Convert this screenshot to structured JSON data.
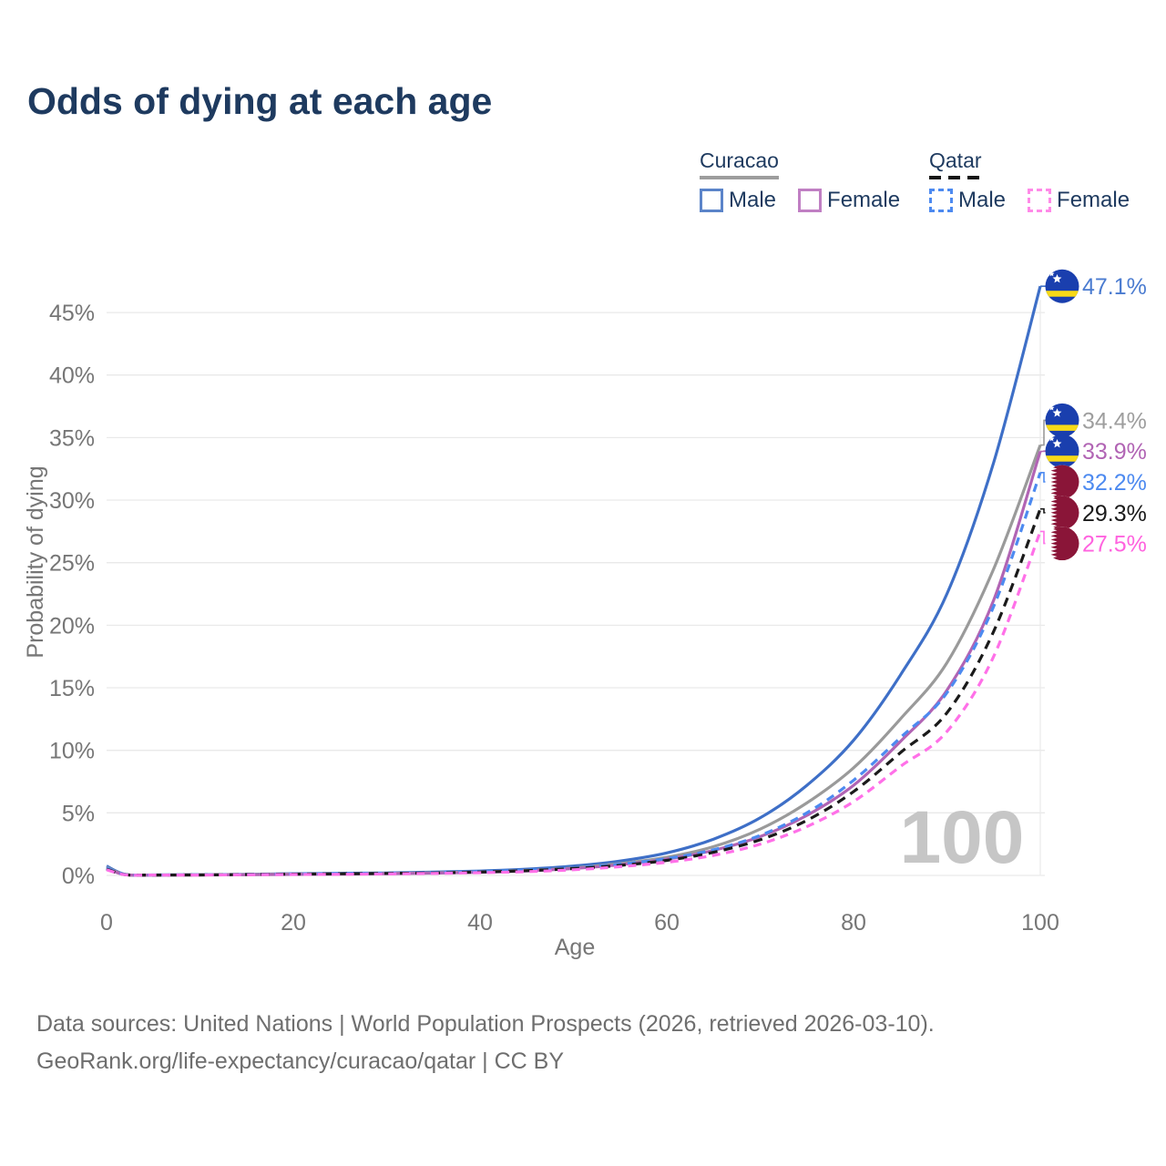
{
  "header": {
    "title": "Odds of dying at each age"
  },
  "legend": {
    "groups": [
      {
        "name": "Curacao",
        "line_style": "solid",
        "underline_color": "#9d9d9d",
        "items": [
          {
            "label": "Male",
            "color": "#5b84c9",
            "dashed": false
          },
          {
            "label": "Female",
            "color": "#c07fc3",
            "dashed": false
          }
        ]
      },
      {
        "name": "Qatar",
        "line_style": "dashed",
        "underline_color": "#161616",
        "items": [
          {
            "label": "Male",
            "color": "#4d8af0",
            "dashed": true
          },
          {
            "label": "Female",
            "color": "#ff8ae8",
            "dashed": true
          }
        ]
      }
    ]
  },
  "chart_data": {
    "type": "line",
    "title": "Odds of dying at each age",
    "xlabel": "Age",
    "ylabel": "Probability of dying",
    "xlim": [
      0,
      100
    ],
    "ylim": [
      0,
      47.5
    ],
    "grid": "horizontal",
    "legend_position": "top-right",
    "frame_label": "100",
    "xticks": [
      0,
      20,
      40,
      60,
      80,
      100
    ],
    "xtick_labels": [
      "0",
      "20",
      "40",
      "60",
      "80",
      "100"
    ],
    "yticks": [
      0,
      5,
      10,
      15,
      20,
      25,
      30,
      35,
      40,
      45
    ],
    "ytick_labels": [
      "0%",
      "5%",
      "10%",
      "15%",
      "20%",
      "25%",
      "30%",
      "35%",
      "40%",
      "45%"
    ],
    "x": [
      0,
      2,
      5,
      10,
      15,
      20,
      25,
      30,
      35,
      40,
      45,
      50,
      55,
      60,
      65,
      70,
      75,
      80,
      85,
      90,
      95,
      100
    ],
    "series": [
      {
        "id": "curacao-male",
        "name": "Curacao Male",
        "country": "Curacao",
        "flag": "cw",
        "color": "#3e6fc7",
        "dash": null,
        "end_label": "47.1%",
        "end_label_color": "#4a7bd0",
        "values": [
          0.75,
          0.08,
          0.04,
          0.05,
          0.09,
          0.14,
          0.17,
          0.2,
          0.26,
          0.35,
          0.5,
          0.75,
          1.15,
          1.8,
          2.9,
          4.6,
          7.2,
          10.8,
          16.0,
          22.5,
          33.0,
          47.1
        ]
      },
      {
        "id": "curacao-total",
        "name": "Curacao",
        "country": "Curacao",
        "flag": "cw",
        "color": "#9a9a9a",
        "dash": null,
        "end_label": "34.4%",
        "end_label_color": "#9e9e9e",
        "values": [
          0.65,
          0.07,
          0.03,
          0.04,
          0.07,
          0.11,
          0.13,
          0.16,
          0.21,
          0.28,
          0.4,
          0.6,
          0.95,
          1.45,
          2.3,
          3.7,
          5.8,
          8.6,
          12.5,
          17.0,
          24.5,
          34.4
        ]
      },
      {
        "id": "curacao-female",
        "name": "Curacao Female",
        "country": "Curacao",
        "flag": "cw",
        "color": "#b164b4",
        "dash": null,
        "end_label": "33.9%",
        "end_label_color": "#b164b4",
        "values": [
          0.55,
          0.06,
          0.03,
          0.04,
          0.05,
          0.08,
          0.1,
          0.13,
          0.18,
          0.25,
          0.36,
          0.55,
          0.85,
          1.3,
          2.0,
          3.1,
          4.8,
          7.2,
          10.7,
          14.8,
          22.0,
          33.9
        ]
      },
      {
        "id": "qatar-male",
        "name": "Qatar Male",
        "country": "Qatar",
        "flag": "qa",
        "color": "#4d8af0",
        "dash": "9 6.5",
        "end_label": "32.2%",
        "end_label_color": "#4d8af0",
        "values": [
          0.6,
          0.07,
          0.03,
          0.05,
          0.08,
          0.12,
          0.15,
          0.18,
          0.23,
          0.3,
          0.42,
          0.6,
          0.9,
          1.35,
          2.05,
          3.2,
          5.0,
          7.6,
          11.0,
          14.6,
          21.5,
          32.2
        ]
      },
      {
        "id": "qatar-total",
        "name": "Qatar",
        "country": "Qatar",
        "flag": "qa",
        "color": "#1a1a1a",
        "dash": "10 7",
        "end_label": "29.3%",
        "end_label_color": "#1a1a1a",
        "values": [
          0.5,
          0.06,
          0.03,
          0.04,
          0.07,
          0.1,
          0.13,
          0.16,
          0.2,
          0.27,
          0.38,
          0.55,
          0.8,
          1.2,
          1.85,
          2.85,
          4.4,
          6.7,
          9.8,
          13.0,
          19.5,
          29.3
        ]
      },
      {
        "id": "qatar-female",
        "name": "Qatar Female",
        "country": "Qatar",
        "flag": "qa",
        "color": "#ff70e8",
        "dash": "9 6.5",
        "end_label": "27.5%",
        "end_label_color": "#ff63df",
        "values": [
          0.45,
          0.05,
          0.03,
          0.03,
          0.05,
          0.07,
          0.09,
          0.12,
          0.16,
          0.22,
          0.3,
          0.45,
          0.7,
          1.05,
          1.6,
          2.5,
          3.9,
          5.9,
          8.7,
          11.5,
          17.5,
          27.5
        ]
      }
    ]
  },
  "footer": {
    "line1": "Data sources: United Nations | World Population Prospects (2026, retrieved 2026-03-10).",
    "line2": "GeoRank.org/life-expectancy/curacao/qatar | CC BY"
  }
}
